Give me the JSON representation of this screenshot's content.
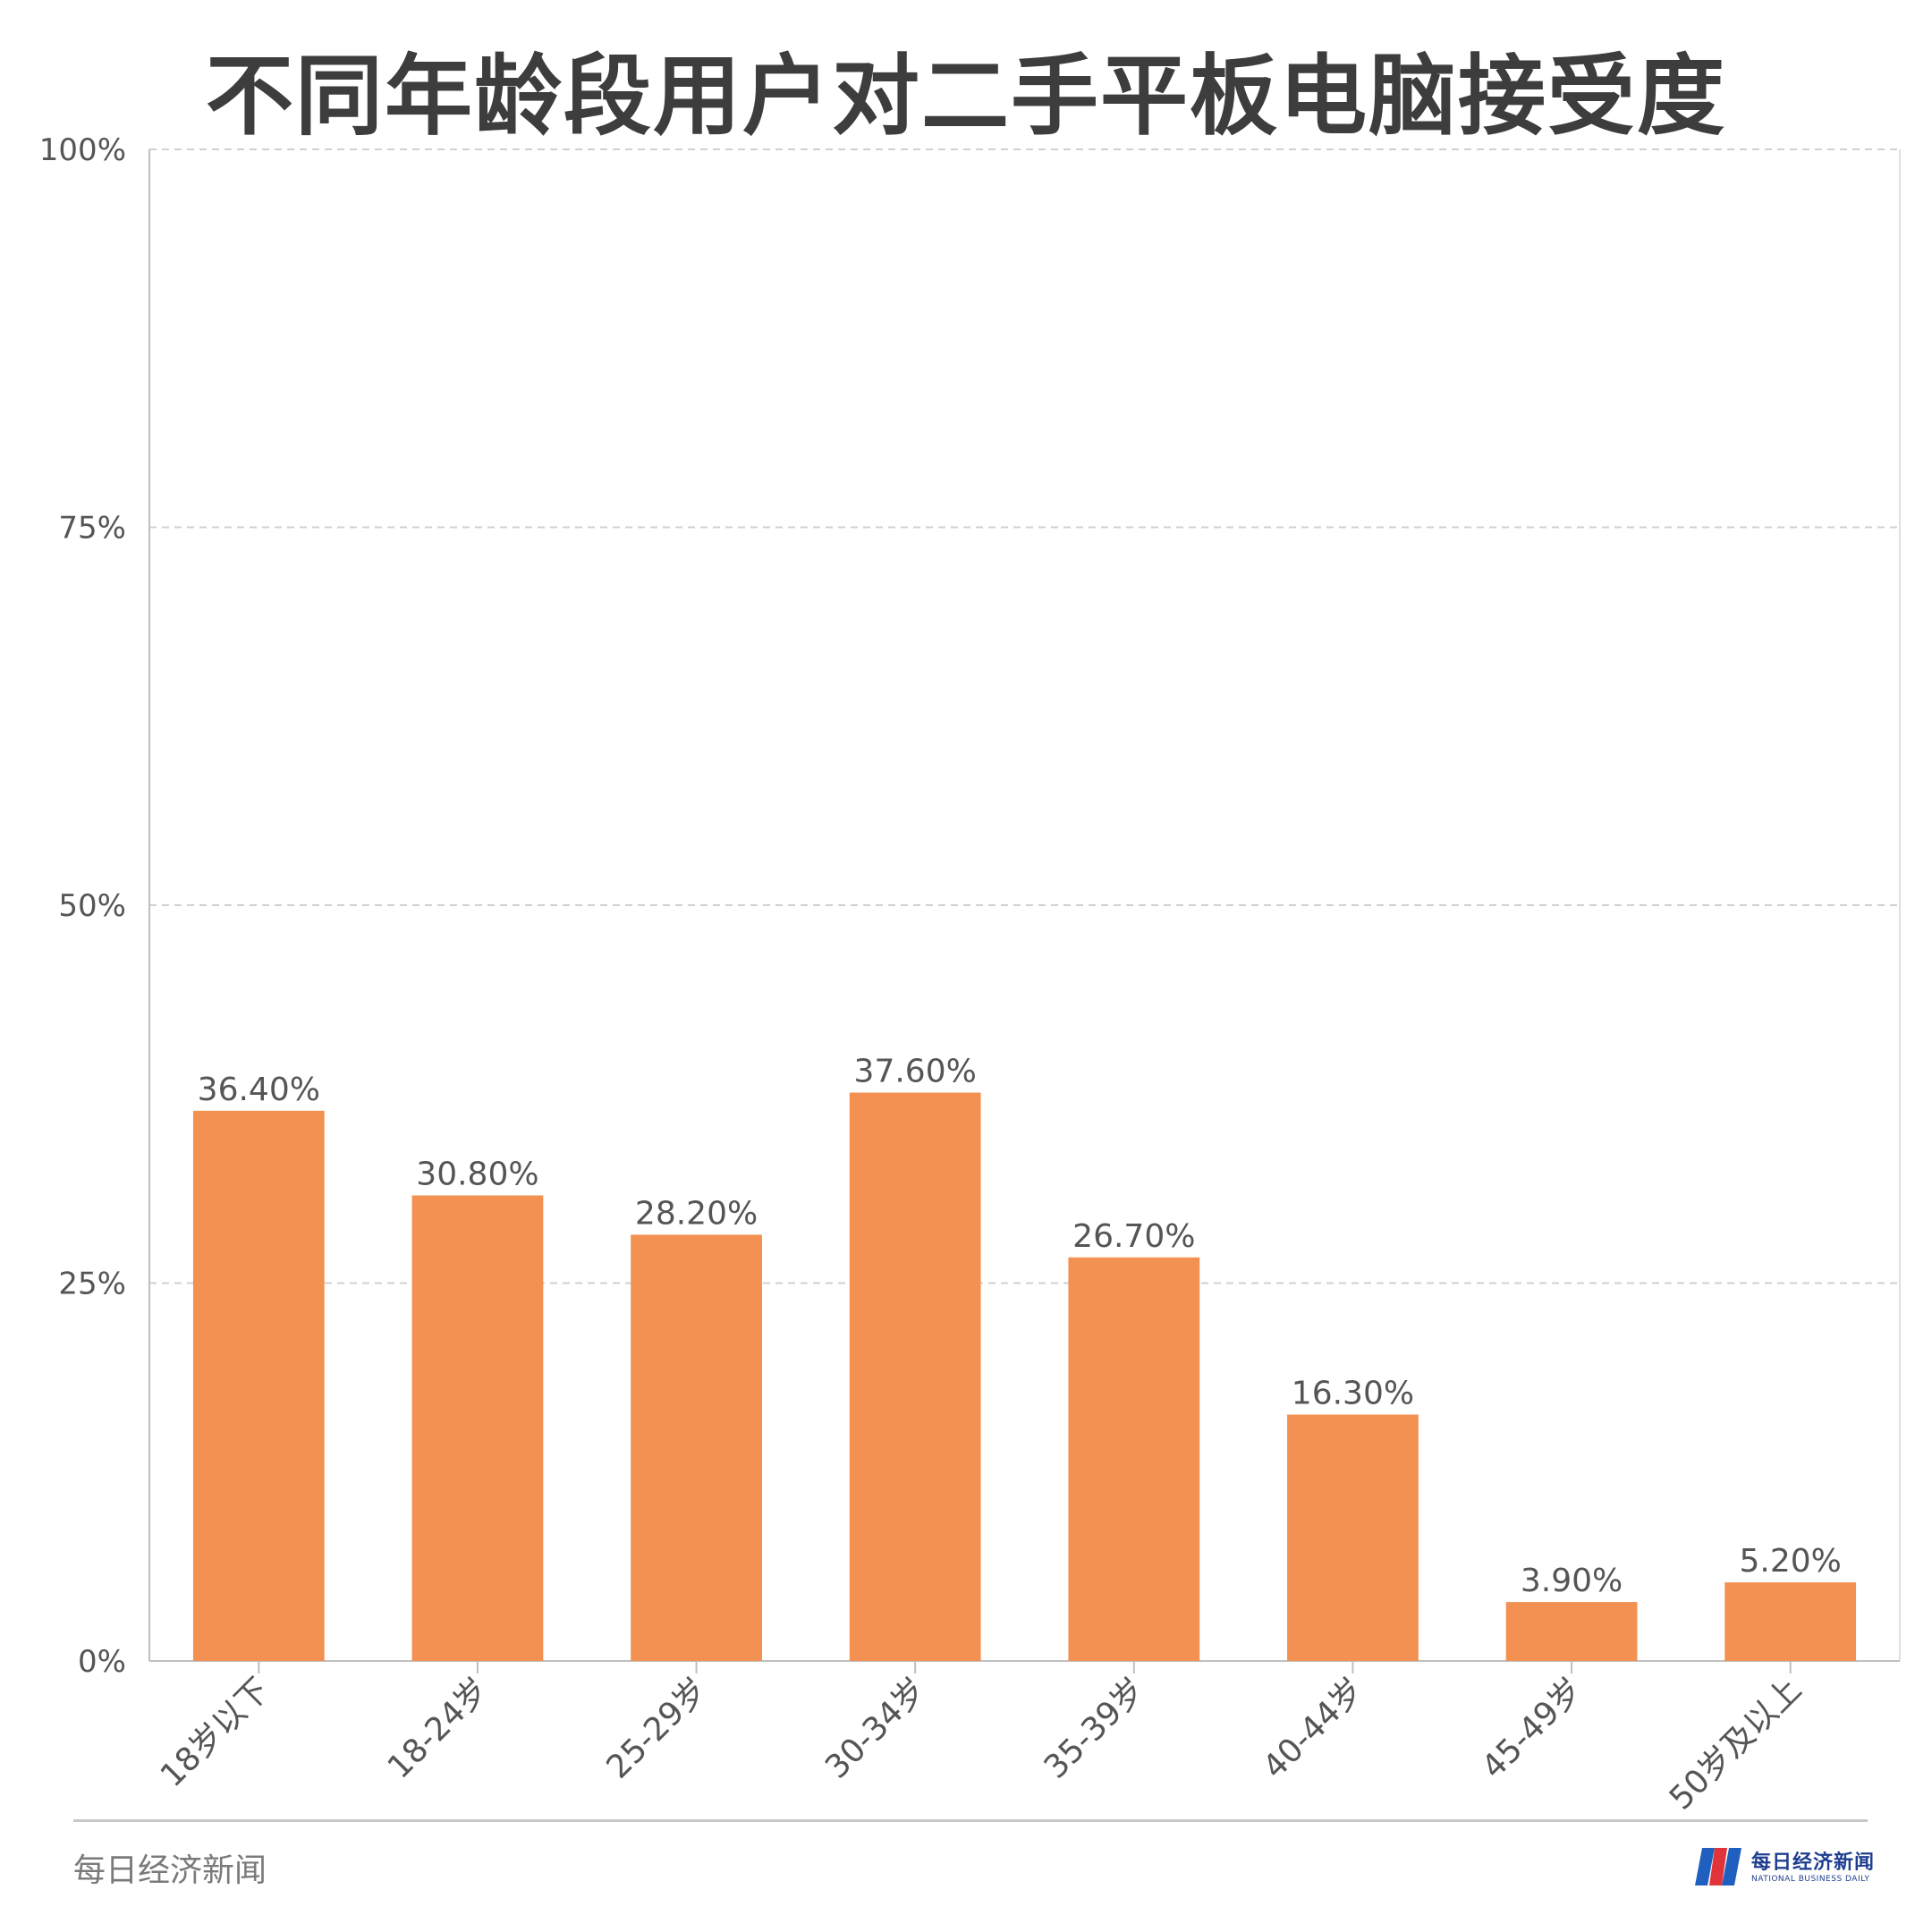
{
  "chart_data": {
    "type": "bar",
    "title": "不同年龄段用户对二手平板电脑接受度",
    "categories": [
      "18岁以下",
      "18-24岁",
      "25-29岁",
      "30-34岁",
      "35-39岁",
      "40-44岁",
      "45-49岁",
      "50岁及以上"
    ],
    "values": [
      36.4,
      30.8,
      28.2,
      37.6,
      26.7,
      16.3,
      3.9,
      5.2
    ],
    "value_labels": [
      "36.40%",
      "30.80%",
      "28.20%",
      "37.60%",
      "26.70%",
      "16.30%",
      "3.90%",
      "5.20%"
    ],
    "ylim": [
      0,
      100
    ],
    "yticks": [
      0,
      25,
      50,
      75,
      100
    ],
    "ytick_labels": [
      "0%",
      "25%",
      "50%",
      "75%",
      "100%"
    ],
    "grid": true,
    "bar_color": "#f29151"
  },
  "footer": {
    "source": "每日经济新闻",
    "logo_name": "每日经济新闻",
    "logo_sub": "NATIONAL BUSINESS DAILY"
  },
  "colors": {
    "logo_blue": "#1f5fbf",
    "logo_red": "#e0343a"
  }
}
